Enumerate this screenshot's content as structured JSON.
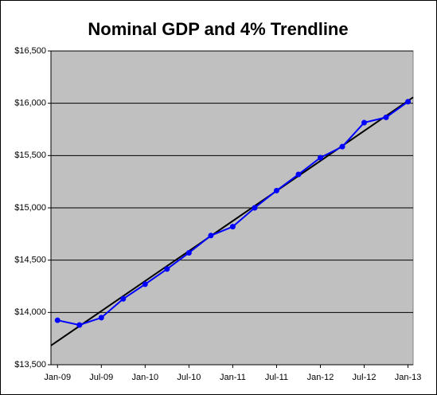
{
  "chart_data": {
    "type": "line",
    "title": "Nominal GDP and 4% Trendline",
    "xlim": [
      -0.9,
      48.7
    ],
    "xticks": [
      {
        "value": 0,
        "label": "Jan-09"
      },
      {
        "value": 6,
        "label": "Jul-09"
      },
      {
        "value": 12,
        "label": "Jan-10"
      },
      {
        "value": 18,
        "label": "Jul-10"
      },
      {
        "value": 24,
        "label": "Jan-11"
      },
      {
        "value": 30,
        "label": "Jul-11"
      },
      {
        "value": 36,
        "label": "Jan-12"
      },
      {
        "value": 42,
        "label": "Jul-12"
      },
      {
        "value": 48,
        "label": "Jan-13"
      }
    ],
    "ylim": [
      13500,
      16500
    ],
    "yticks": [
      {
        "value": 13500,
        "label": "$13,500"
      },
      {
        "value": 14000,
        "label": "$14,000"
      },
      {
        "value": 14500,
        "label": "$14,500"
      },
      {
        "value": 15000,
        "label": "$15,000"
      },
      {
        "value": 15500,
        "label": "$15,500"
      },
      {
        "value": 16000,
        "label": "$16,000"
      },
      {
        "value": 16500,
        "label": "$16,500"
      }
    ],
    "grid": true,
    "series": [
      {
        "color": "#0000ff",
        "marker": "circle",
        "x": [
          0,
          3,
          6,
          9,
          12,
          15,
          18,
          21,
          24,
          27,
          30,
          33,
          36,
          39,
          42,
          45,
          48
        ],
        "values": [
          13925,
          13880,
          13950,
          14130,
          14270,
          14415,
          14570,
          14735,
          14820,
          15000,
          15165,
          15320,
          15480,
          15585,
          15815,
          15865,
          16015
        ]
      },
      {
        "color": "#000000",
        "x": [
          -0.9,
          48.7
        ],
        "values": [
          13683,
          16057
        ]
      }
    ]
  }
}
